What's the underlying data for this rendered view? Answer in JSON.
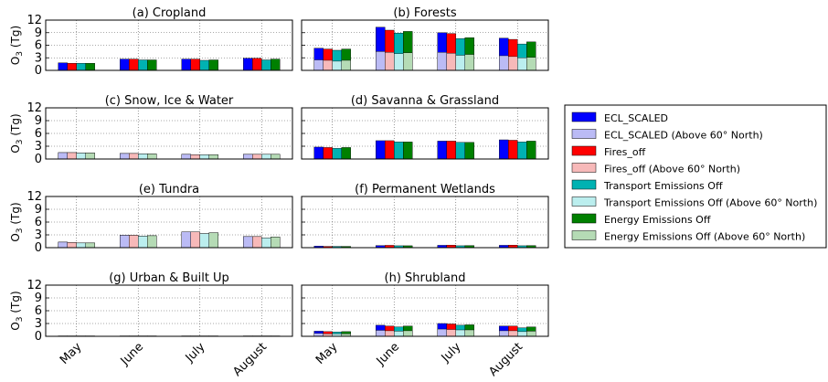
{
  "chart_data": {
    "type": "bar",
    "ylabel": "O₃ (Tg)",
    "categories": [
      "May",
      "June",
      "July",
      "August"
    ],
    "ylim": [
      0,
      12
    ],
    "yticks": [
      0,
      3,
      6,
      9,
      12
    ],
    "grid": true,
    "series": [
      {
        "name": "ECL_SCALED",
        "color": "#0000ff",
        "light_color": "#bbbbf5"
      },
      {
        "name": "Fires_off",
        "color": "#ff0000",
        "light_color": "#f7b9b9"
      },
      {
        "name": "Transport Emissions Off",
        "color": "#00b2b2",
        "light_color": "#bbeeee"
      },
      {
        "name": "Energy Emissions Off",
        "color": "#008000",
        "light_color": "#b5dbb5"
      }
    ],
    "above60_label_suffix": " (Above 60° North)",
    "legend_entries": [
      "ECL_SCALED",
      "ECL_SCALED (Above 60° North)",
      "Fires_off",
      "Fires_off (Above 60° North)",
      "Transport Emissions Off",
      "Transport Emissions Off (Above 60° North)",
      "Energy Emissions Off",
      "Energy Emissions Off (Above 60° North)"
    ],
    "panels": [
      {
        "title": "(a) Cropland",
        "total": [
          [
            1.8,
            1.7,
            1.7,
            1.7
          ],
          [
            2.7,
            2.7,
            2.5,
            2.5
          ],
          [
            2.7,
            2.7,
            2.4,
            2.5
          ],
          [
            2.9,
            2.9,
            2.5,
            2.7
          ]
        ],
        "above60": [
          [
            0,
            0,
            0,
            0
          ],
          [
            0,
            0,
            0,
            0
          ],
          [
            0,
            0,
            0,
            0
          ],
          [
            0,
            0,
            0,
            0
          ]
        ]
      },
      {
        "title": "(b) Forests",
        "total": [
          [
            5.3,
            5.1,
            4.8,
            5.1
          ],
          [
            10.3,
            9.6,
            8.9,
            9.3
          ],
          [
            9.0,
            8.8,
            7.6,
            7.8
          ],
          [
            7.7,
            7.4,
            6.3,
            6.8
          ]
        ],
        "above60": [
          [
            2.5,
            2.4,
            2.2,
            2.4
          ],
          [
            4.5,
            4.3,
            4.0,
            4.2
          ],
          [
            4.3,
            4.1,
            3.6,
            3.8
          ],
          [
            3.5,
            3.3,
            3.0,
            3.1
          ]
        ]
      },
      {
        "title": "(c) Snow, Ice & Water",
        "total": [
          [
            1.5,
            1.5,
            1.4,
            1.4
          ],
          [
            1.3,
            1.3,
            1.2,
            1.2
          ],
          [
            1.1,
            1.0,
            1.0,
            1.0
          ],
          [
            1.1,
            1.1,
            1.1,
            1.1
          ]
        ],
        "above60": [
          [
            1.5,
            1.5,
            1.4,
            1.4
          ],
          [
            1.3,
            1.3,
            1.2,
            1.2
          ],
          [
            1.1,
            1.0,
            1.0,
            1.0
          ],
          [
            1.1,
            1.1,
            1.1,
            1.1
          ]
        ]
      },
      {
        "title": "(d) Savanna & Grassland",
        "total": [
          [
            2.8,
            2.7,
            2.5,
            2.7
          ],
          [
            4.3,
            4.3,
            4.0,
            4.0
          ],
          [
            4.2,
            4.2,
            3.9,
            3.9
          ],
          [
            4.5,
            4.4,
            4.0,
            4.2
          ]
        ],
        "above60": [
          [
            0,
            0,
            0,
            0
          ],
          [
            0,
            0,
            0,
            0
          ],
          [
            0,
            0,
            0,
            0
          ],
          [
            0,
            0,
            0,
            0
          ]
        ]
      },
      {
        "title": "(e) Tundra",
        "total": [
          [
            1.3,
            1.2,
            1.1,
            1.1
          ],
          [
            2.9,
            2.9,
            2.7,
            2.8
          ],
          [
            3.7,
            3.7,
            3.3,
            3.5
          ],
          [
            2.6,
            2.6,
            2.3,
            2.5
          ]
        ],
        "above60": [
          [
            1.3,
            1.2,
            1.1,
            1.1
          ],
          [
            2.9,
            2.9,
            2.7,
            2.8
          ],
          [
            3.7,
            3.7,
            3.3,
            3.5
          ],
          [
            2.6,
            2.6,
            2.3,
            2.5
          ]
        ]
      },
      {
        "title": "(f) Permanent Wetlands",
        "total": [
          [
            0.35,
            0.3,
            0.3,
            0.3
          ],
          [
            0.5,
            0.55,
            0.45,
            0.45
          ],
          [
            0.55,
            0.6,
            0.45,
            0.5
          ],
          [
            0.55,
            0.6,
            0.45,
            0.5
          ]
        ],
        "above60": [
          [
            0,
            0,
            0,
            0
          ],
          [
            0,
            0,
            0,
            0
          ],
          [
            0,
            0,
            0,
            0
          ],
          [
            0,
            0,
            0,
            0
          ]
        ]
      },
      {
        "title": "(g) Urban & Built Up",
        "total": [
          [
            0.1,
            0.1,
            0.1,
            0.1
          ],
          [
            0.1,
            0.1,
            0.1,
            0.1
          ],
          [
            0.1,
            0.1,
            0.1,
            0.1
          ],
          [
            0.1,
            0.1,
            0.1,
            0.1
          ]
        ],
        "above60": [
          [
            0,
            0,
            0,
            0
          ],
          [
            0,
            0,
            0,
            0
          ],
          [
            0,
            0,
            0,
            0
          ],
          [
            0,
            0,
            0,
            0
          ]
        ]
      },
      {
        "title": "(h) Shrubland",
        "total": [
          [
            1.2,
            1.1,
            1.0,
            1.1
          ],
          [
            2.6,
            2.4,
            2.2,
            2.4
          ],
          [
            3.0,
            2.9,
            2.6,
            2.7
          ],
          [
            2.4,
            2.4,
            2.0,
            2.2
          ]
        ],
        "above60": [
          [
            0.7,
            0.6,
            0.6,
            0.6
          ],
          [
            1.4,
            1.3,
            1.2,
            1.3
          ],
          [
            1.7,
            1.6,
            1.5,
            1.5
          ],
          [
            1.3,
            1.3,
            1.1,
            1.2
          ]
        ]
      }
    ]
  }
}
